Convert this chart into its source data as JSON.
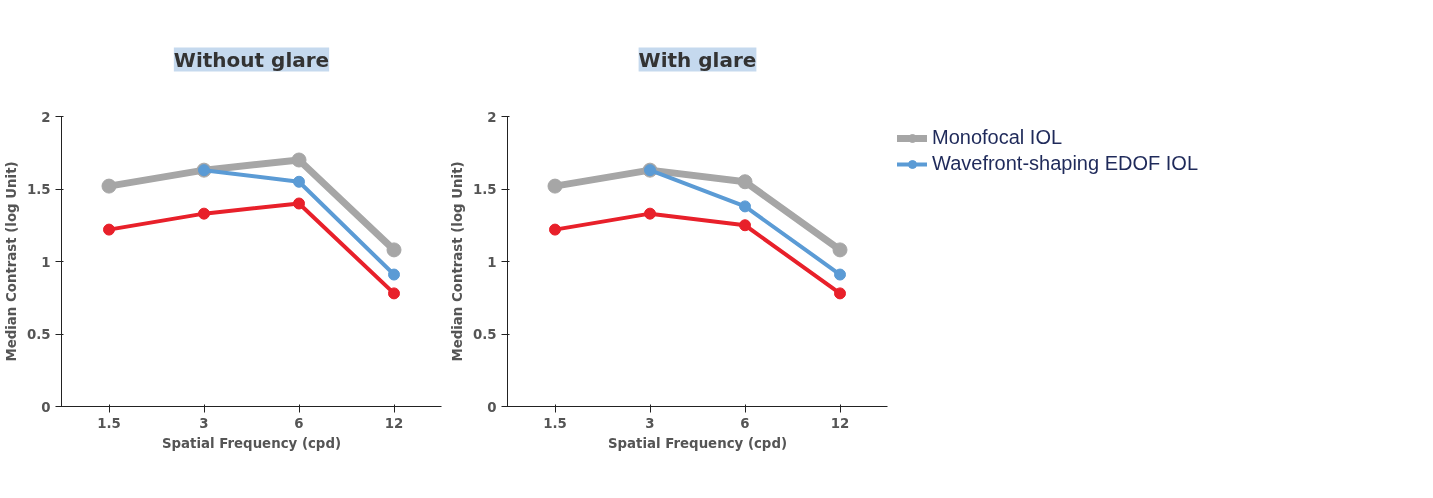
{
  "chart_data": [
    {
      "type": "line",
      "title": "Without glare",
      "xlabel": "Spatial Frequency (cpd)",
      "ylabel": "Median Contrast (log Unit)",
      "categories": [
        "1.5",
        "3",
        "6",
        "12"
      ],
      "ylim": [
        0,
        2
      ],
      "yticks": [
        0,
        0.5,
        1,
        1.5,
        2
      ],
      "grid": false,
      "legend": false,
      "marker": "circle",
      "line_style": "solid",
      "series": [
        {
          "color": "#a6a6a6",
          "values": [
            1.52,
            1.63,
            1.7,
            1.08
          ]
        },
        {
          "color": "#5b9bd5",
          "values": [
            null,
            1.63,
            1.55,
            0.91
          ]
        },
        {
          "color": "#e8202a",
          "values": [
            1.22,
            1.33,
            1.4,
            0.78
          ]
        }
      ]
    },
    {
      "type": "line",
      "title": "With glare",
      "xlabel": "Spatial Frequency (cpd)",
      "ylabel": "Median Contrast (log Unit)",
      "categories": [
        "1.5",
        "3",
        "6",
        "12"
      ],
      "ylim": [
        0,
        2
      ],
      "yticks": [
        0,
        0.5,
        1,
        1.5,
        2
      ],
      "grid": false,
      "legend": "right",
      "marker": "circle",
      "line_style": "solid",
      "series": [
        {
          "name": "Monofocal IOL",
          "color": "#a6a6a6",
          "values": [
            1.52,
            1.63,
            1.55,
            1.08
          ]
        },
        {
          "name": "Wavefront-shaping EDOF IOL",
          "color": "#5b9bd5",
          "values": [
            null,
            1.63,
            1.38,
            0.91
          ]
        },
        {
          "color": "#e8202a",
          "values": [
            1.22,
            1.33,
            1.25,
            0.78
          ]
        }
      ]
    }
  ]
}
